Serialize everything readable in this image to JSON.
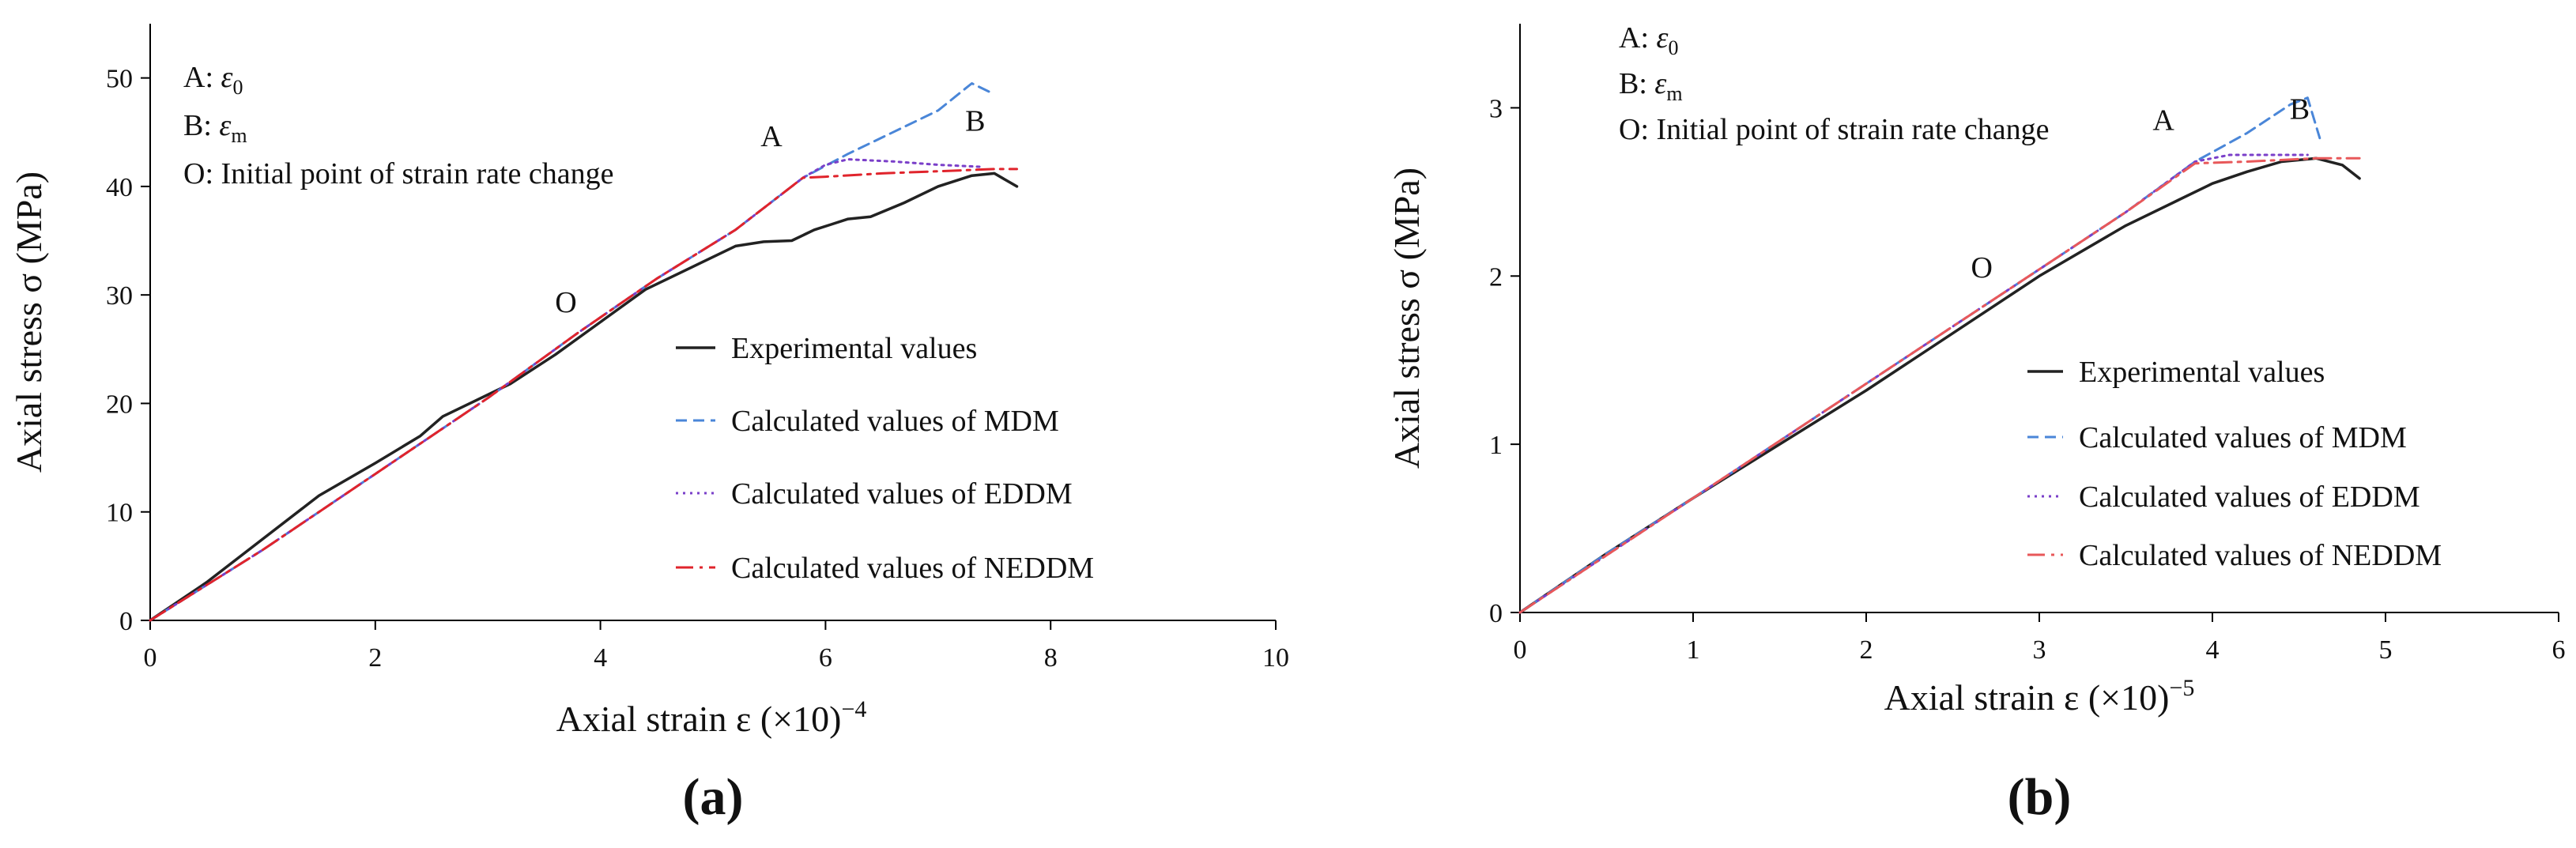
{
  "chart_data": [
    {
      "type": "line",
      "panel_label": "(a)",
      "xlabel": "Axial strain ε (×10)",
      "xlabel_exp": "−4",
      "ylabel": "Axial  stress σ  (MPa)",
      "xlim": [
        0,
        10
      ],
      "ylim": [
        0,
        55
      ],
      "xticks": [
        "0",
        "2",
        "4",
        "6",
        "8",
        "10"
      ],
      "yticks": [
        "0",
        "10",
        "20",
        "30",
        "40",
        "50"
      ],
      "annotations": [
        {
          "key": "A",
          "sep": ": ",
          "sym": "ε",
          "sub": "0"
        },
        {
          "key": "B",
          "sep": ": ",
          "sym": "ε",
          "sub": "m"
        },
        {
          "key": "O",
          "sep": ": ",
          "text": "Initial point of strain rate change"
        }
      ],
      "points": [
        {
          "label": "O",
          "x": 3.82,
          "y": 26.5
        },
        {
          "label": "A",
          "x": 5.8,
          "y": 40.8
        },
        {
          "label": "B",
          "x": 7.4,
          "y": 41.5
        }
      ],
      "legend_position": "right",
      "series": [
        {
          "name": "Experimental values",
          "color": "#222222",
          "style": "solid",
          "x": [
            0,
            0.5,
            1.0,
            1.5,
            2.0,
            2.4,
            2.6,
            2.8,
            3.2,
            3.6,
            4.0,
            4.4,
            4.8,
            5.2,
            5.45,
            5.7,
            5.9,
            6.05,
            6.2,
            6.4,
            6.7,
            7.0,
            7.3,
            7.5,
            7.7
          ],
          "y": [
            0,
            3.5,
            7.5,
            11.5,
            14.5,
            17.0,
            18.8,
            19.8,
            21.8,
            24.5,
            27.5,
            30.5,
            32.5,
            34.5,
            34.9,
            35.0,
            36.0,
            36.5,
            37.0,
            37.2,
            38.5,
            40.0,
            41.0,
            41.2,
            40.0
          ]
        },
        {
          "name": "Calculated values of MDM",
          "color": "#4a86d8",
          "style": "dashed",
          "x": [
            0,
            1,
            2,
            3,
            3.8,
            4.5,
            5.2,
            5.8,
            6.2,
            6.6,
            7.0,
            7.3,
            7.5
          ],
          "y": [
            0,
            6.5,
            13.5,
            20.5,
            26.5,
            31.5,
            36.0,
            40.8,
            43.0,
            45.0,
            47.0,
            49.5,
            48.5
          ]
        },
        {
          "name": "Calculated values of EDDM",
          "color": "#7a3fc9",
          "style": "dotted",
          "x": [
            0,
            1,
            2,
            3,
            3.8,
            4.5,
            5.2,
            5.8,
            6.0,
            6.2,
            6.6,
            7.0,
            7.4
          ],
          "y": [
            0,
            6.5,
            13.5,
            20.5,
            26.5,
            31.5,
            36.0,
            40.8,
            42.0,
            42.5,
            42.3,
            42.0,
            41.8
          ]
        },
        {
          "name": "Calculated values of NEDDM",
          "color": "#e0242c",
          "style": "dashdot",
          "x": [
            0,
            1,
            2,
            3,
            3.8,
            4.5,
            5.2,
            5.8,
            6.0,
            6.5,
            7.0,
            7.5,
            7.7
          ],
          "y": [
            0,
            6.5,
            13.5,
            20.5,
            26.5,
            31.5,
            36.0,
            40.8,
            40.9,
            41.2,
            41.4,
            41.6,
            41.6
          ]
        }
      ]
    },
    {
      "type": "line",
      "panel_label": "(b)",
      "xlabel": "Axial strain ε (×10)",
      "xlabel_exp": "−5",
      "ylabel": "Axial  stress σ  (MPa)",
      "xlim": [
        0,
        6
      ],
      "ylim": [
        0,
        3.5
      ],
      "xticks": [
        "0",
        "1",
        "2",
        "3",
        "4",
        "5",
        "6"
      ],
      "yticks": [
        "0",
        "1",
        "2",
        "3"
      ],
      "annotations": [
        {
          "key": "A",
          "sep": ": ",
          "sym": "ε",
          "sub": "0"
        },
        {
          "key": "B",
          "sep": ": ",
          "sym": "ε",
          "sub": "m"
        },
        {
          "key": "O",
          "sep": ": ",
          "text": "Initial point of strain rate change"
        }
      ],
      "points": [
        {
          "label": "O",
          "x": 2.75,
          "y": 1.87
        },
        {
          "label": "A",
          "x": 3.9,
          "y": 2.68
        },
        {
          "label": "B",
          "x": 4.55,
          "y": 2.7
        }
      ],
      "legend_position": "right",
      "series": [
        {
          "name": "Experimental values",
          "color": "#222222",
          "style": "solid",
          "x": [
            0,
            0.5,
            1.0,
            1.5,
            2.0,
            2.5,
            3.0,
            3.5,
            3.8,
            4.0,
            4.2,
            4.4,
            4.6,
            4.75,
            4.85
          ],
          "y": [
            0,
            0.35,
            0.68,
            1.0,
            1.32,
            1.66,
            2.0,
            2.3,
            2.45,
            2.55,
            2.62,
            2.68,
            2.7,
            2.66,
            2.58
          ]
        },
        {
          "name": "Calculated values of MDM",
          "color": "#4a86d8",
          "style": "dashed",
          "x": [
            0,
            0.5,
            1.0,
            1.5,
            2.0,
            2.5,
            3.0,
            3.5,
            3.9,
            4.2,
            4.45,
            4.55,
            4.62
          ],
          "y": [
            0,
            0.35,
            0.68,
            1.02,
            1.36,
            1.7,
            2.04,
            2.38,
            2.68,
            2.85,
            3.02,
            3.06,
            2.82
          ]
        },
        {
          "name": "Calculated values of EDDM",
          "color": "#7a3fc9",
          "style": "dotted",
          "x": [
            0,
            0.5,
            1.0,
            1.5,
            2.0,
            2.5,
            3.0,
            3.5,
            3.9,
            4.1,
            4.3,
            4.55
          ],
          "y": [
            0,
            0.34,
            0.68,
            1.02,
            1.36,
            1.7,
            2.04,
            2.38,
            2.68,
            2.72,
            2.72,
            2.72
          ]
        },
        {
          "name": "Calculated values of NEDDM",
          "color": "#e8585a",
          "style": "dashdot",
          "x": [
            0,
            0.5,
            1.0,
            1.5,
            2.0,
            2.5,
            3.0,
            3.5,
            3.9,
            4.2,
            4.6,
            4.85
          ],
          "y": [
            0,
            0.34,
            0.68,
            1.02,
            1.36,
            1.7,
            2.04,
            2.38,
            2.67,
            2.68,
            2.7,
            2.7
          ]
        }
      ]
    }
  ]
}
